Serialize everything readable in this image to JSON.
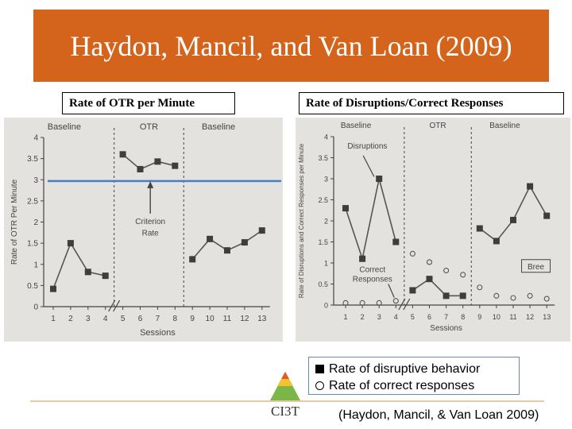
{
  "title": "Haydon, Mancil, and Van Loan (2009)",
  "colors": {
    "title_bg": "#d4641c",
    "criterion_line": "#4a7cc0",
    "panel_bg": "#e3e2de"
  },
  "captions": {
    "left": "Rate of OTR per Minute",
    "right": "Rate of Disruptions/Correct Responses"
  },
  "legend": {
    "item1": "Rate of disruptive behavior",
    "item2": "Rate of correct responses"
  },
  "logo_text": "CI3T",
  "citation": "(Haydon, Mancil, & Van Loan 2009)",
  "chart_data": [
    {
      "type": "line",
      "ylabel": "Rate of OTR Per Minute",
      "xlabel": "Sessions",
      "phases": [
        "Baseline",
        "OTR",
        "Baseline"
      ],
      "ylim": [
        0,
        4
      ],
      "yticks": [
        "0",
        "0.5",
        "1",
        "1.5",
        "2",
        "2.5",
        "3",
        "3.5",
        "4"
      ],
      "xticks": [
        "1",
        "2",
        "3",
        "4",
        "5",
        "6",
        "7",
        "8",
        "9",
        "10",
        "11",
        "12",
        "13"
      ],
      "annotation": "Criterion Rate",
      "criterion_value": 2.97,
      "series": [
        {
          "segments": [
            {
              "x": [
                1,
                2,
                3,
                4
              ],
              "y": [
                0.42,
                1.5,
                0.82,
                0.73
              ]
            },
            {
              "x": [
                5,
                6,
                7,
                8
              ],
              "y": [
                3.6,
                3.25,
                3.43,
                3.33
              ]
            },
            {
              "x": [
                9,
                10,
                11,
                12,
                13
              ],
              "y": [
                1.12,
                1.6,
                1.33,
                1.52,
                1.8
              ]
            }
          ]
        }
      ]
    },
    {
      "type": "line",
      "ylabel": "Rate of Disruptions and Correct Responses per Minute",
      "xlabel": "Sessions",
      "phases": [
        "Baseline",
        "OTR",
        "Baseline"
      ],
      "ylim": [
        0,
        4
      ],
      "yticks": [
        "0",
        "0.5",
        "1",
        "1.5",
        "2",
        "2.5",
        "3",
        "3.5",
        "4"
      ],
      "xticks": [
        "1",
        "2",
        "3",
        "4",
        "5",
        "6",
        "7",
        "8",
        "9",
        "10",
        "11",
        "12",
        "13"
      ],
      "annotations": [
        "Disruptions",
        "Correct Responses",
        "Bree"
      ],
      "series": [
        {
          "marker": "square",
          "segments": [
            {
              "x": [
                1,
                2,
                3,
                4
              ],
              "y": [
                2.3,
                1.1,
                3.0,
                1.5
              ]
            },
            {
              "x": [
                5,
                6,
                7,
                8
              ],
              "y": [
                0.35,
                0.62,
                0.22,
                0.22
              ]
            },
            {
              "x": [
                9,
                10,
                11,
                12,
                13
              ],
              "y": [
                1.82,
                1.52,
                2.02,
                2.82,
                2.12
              ]
            }
          ]
        },
        {
          "marker": "circle",
          "segments": [
            {
              "x": [
                1,
                2,
                3,
                4
              ],
              "y": [
                0.05,
                0.05,
                0.05,
                0.1
              ]
            },
            {
              "x": [
                5,
                6,
                7,
                8
              ],
              "y": [
                1.22,
                1.02,
                0.82,
                0.72
              ]
            },
            {
              "x": [
                9,
                10,
                11,
                12,
                13
              ],
              "y": [
                0.42,
                0.22,
                0.17,
                0.22,
                0.15
              ]
            }
          ]
        }
      ]
    }
  ]
}
